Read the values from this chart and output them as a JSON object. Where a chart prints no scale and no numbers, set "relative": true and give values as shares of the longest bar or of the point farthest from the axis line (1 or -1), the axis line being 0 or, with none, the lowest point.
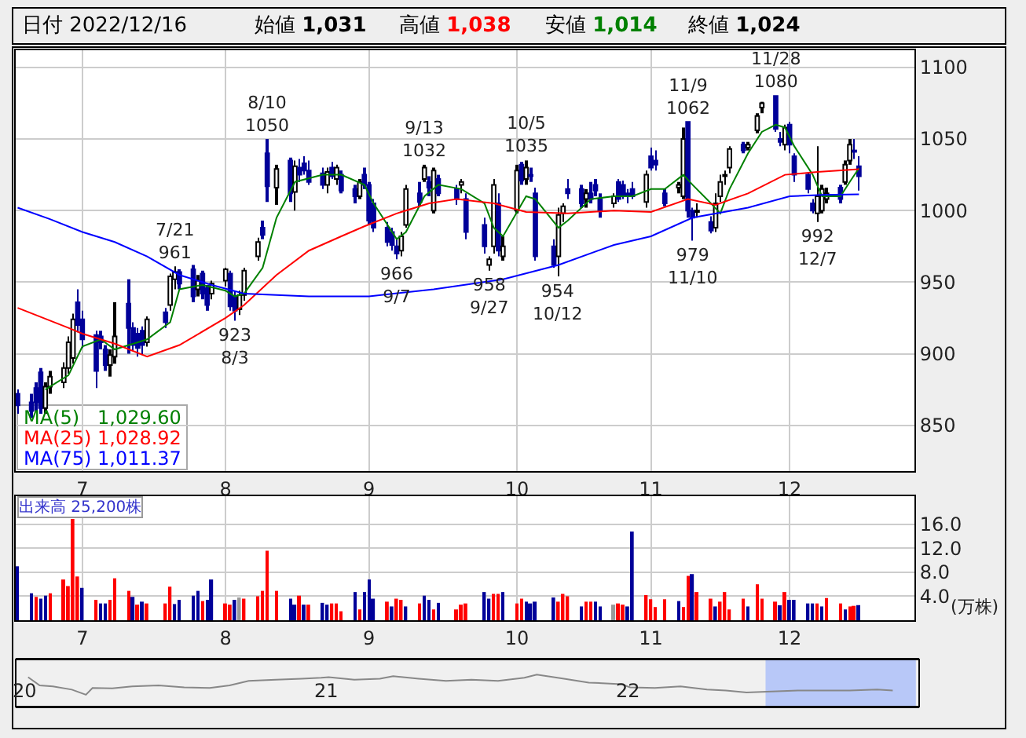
{
  "chart_data": [
    {
      "type": "candlestick",
      "x": [
        "2022-06-17",
        "2022-06-20",
        "2022-06-21",
        "2022-06-22",
        "2022-06-23",
        "2022-06-24",
        "2022-06-27",
        "2022-06-28",
        "2022-06-29",
        "2022-06-30",
        "2022-07-01",
        "2022-07-04",
        "2022-07-05",
        "2022-07-06",
        "2022-07-07",
        "2022-07-08",
        "2022-07-11",
        "2022-07-12",
        "2022-07-13",
        "2022-07-14",
        "2022-07-15",
        "2022-07-19",
        "2022-07-20",
        "2022-07-21",
        "2022-07-22",
        "2022-07-25",
        "2022-07-26",
        "2022-07-27",
        "2022-07-28",
        "2022-07-29",
        "2022-08-01",
        "2022-08-02",
        "2022-08-03",
        "2022-08-04",
        "2022-08-05",
        "2022-08-08",
        "2022-08-09",
        "2022-08-10",
        "2022-08-12",
        "2022-08-15",
        "2022-08-16",
        "2022-08-17",
        "2022-08-18",
        "2022-08-19",
        "2022-08-22",
        "2022-08-23",
        "2022-08-24",
        "2022-08-25",
        "2022-08-26",
        "2022-08-29",
        "2022-08-30",
        "2022-08-31",
        "2022-09-01",
        "2022-09-02",
        "2022-09-05",
        "2022-09-06",
        "2022-09-07",
        "2022-09-08",
        "2022-09-09",
        "2022-09-12",
        "2022-09-13",
        "2022-09-14",
        "2022-09-15",
        "2022-09-16",
        "2022-09-20",
        "2022-09-21",
        "2022-09-22",
        "2022-09-26",
        "2022-09-27",
        "2022-09-28",
        "2022-09-29",
        "2022-09-30",
        "2022-10-03",
        "2022-10-04",
        "2022-10-05",
        "2022-10-06",
        "2022-10-07",
        "2022-10-11",
        "2022-10-12",
        "2022-10-13",
        "2022-10-14",
        "2022-10-17",
        "2022-10-18",
        "2022-10-19",
        "2022-10-20",
        "2022-10-21",
        "2022-10-24",
        "2022-10-25",
        "2022-10-26",
        "2022-10-27",
        "2022-10-28",
        "2022-10-31",
        "2022-11-01",
        "2022-11-02",
        "2022-11-04",
        "2022-11-07",
        "2022-11-08",
        "2022-11-09",
        "2022-11-10",
        "2022-11-11",
        "2022-11-14",
        "2022-11-15",
        "2022-11-16",
        "2022-11-17",
        "2022-11-18",
        "2022-11-21",
        "2022-11-22",
        "2022-11-24",
        "2022-11-25",
        "2022-11-28",
        "2022-11-29",
        "2022-11-30",
        "2022-12-01",
        "2022-12-02",
        "2022-12-05",
        "2022-12-06",
        "2022-12-07",
        "2022-12-08",
        "2022-12-09",
        "2022-12-12",
        "2022-12-13",
        "2022-12-14",
        "2022-12-15",
        "2022-12-16"
      ],
      "ohlc": [
        [
          872,
          875,
          858,
          864
        ],
        [
          866,
          872,
          855,
          860
        ],
        [
          876,
          880,
          860,
          866
        ],
        [
          887,
          890,
          858,
          862
        ],
        [
          862,
          880,
          858,
          877
        ],
        [
          877,
          888,
          872,
          884
        ],
        [
          880,
          894,
          876,
          890
        ],
        [
          890,
          912,
          886,
          908
        ],
        [
          897,
          928,
          893,
          924
        ],
        [
          936,
          945,
          915,
          920
        ],
        [
          924,
          930,
          904,
          910
        ],
        [
          913,
          916,
          876,
          888
        ],
        [
          912,
          916,
          903,
          908
        ],
        [
          903,
          906,
          888,
          892
        ],
        [
          892,
          903,
          884,
          899
        ],
        [
          898,
          936,
          893,
          912
        ],
        [
          935,
          952,
          900,
          918
        ],
        [
          918,
          922,
          902,
          906
        ],
        [
          914,
          918,
          898,
          904
        ],
        [
          916,
          919,
          899,
          906
        ],
        [
          908,
          926,
          905,
          924
        ],
        [
          929,
          932,
          918,
          922
        ],
        [
          934,
          956,
          930,
          954
        ],
        [
          952,
          961,
          945,
          957
        ],
        [
          957,
          959,
          945,
          949
        ],
        [
          959,
          962,
          936,
          940
        ],
        [
          945,
          955,
          940,
          951
        ],
        [
          956,
          958,
          938,
          942
        ],
        [
          946,
          948,
          930,
          934
        ],
        [
          942,
          951,
          938,
          949
        ],
        [
          951,
          960,
          947,
          959
        ],
        [
          956,
          958,
          930,
          933
        ],
        [
          940,
          944,
          923,
          930
        ],
        [
          931,
          944,
          927,
          941
        ],
        [
          941,
          960,
          937,
          958
        ],
        [
          968,
          981,
          965,
          978
        ],
        [
          988,
          993,
          980,
          983
        ],
        [
          1040,
          1050,
          1006,
          1017
        ],
        [
          1016,
          1032,
          1004,
          1029
        ],
        [
          1035,
          1037,
          1006,
          1012
        ],
        [
          1013,
          1035,
          1000,
          1031
        ],
        [
          1030,
          1036,
          1020,
          1025
        ],
        [
          1033,
          1038,
          1025,
          1028
        ],
        [
          1028,
          1035,
          1018,
          1020
        ],
        [
          1026,
          1030,
          1015,
          1018
        ],
        [
          1018,
          1030,
          1012,
          1027
        ],
        [
          1030,
          1034,
          1022,
          1024
        ],
        [
          1022,
          1032,
          1018,
          1030
        ],
        [
          1025,
          1028,
          1012,
          1014
        ],
        [
          1015,
          1018,
          1005,
          1010
        ],
        [
          1010,
          1022,
          1008,
          1020
        ],
        [
          1025,
          1030,
          1015,
          1018
        ],
        [
          1018,
          1020,
          990,
          993
        ],
        [
          1005,
          1008,
          985,
          988
        ],
        [
          988,
          992,
          975,
          978
        ],
        [
          985,
          988,
          972,
          976
        ],
        [
          975,
          980,
          966,
          970
        ],
        [
          972,
          985,
          968,
          982
        ],
        [
          990,
          1018,
          988,
          1015
        ],
        [
          1012,
          1020,
          1003,
          1006
        ],
        [
          1022,
          1032,
          1020,
          1030
        ],
        [
          1020,
          1024,
          1010,
          1016
        ],
        [
          1000,
          1030,
          998,
          1028
        ],
        [
          1022,
          1025,
          1010,
          1012
        ],
        [
          1015,
          1018,
          1004,
          1008
        ],
        [
          1018,
          1022,
          1012,
          1020
        ],
        [
          1008,
          1012,
          980,
          985
        ],
        [
          990,
          995,
          970,
          975
        ],
        [
          962,
          968,
          958,
          966
        ],
        [
          975,
          1022,
          970,
          1018
        ],
        [
          1005,
          1012,
          968,
          972
        ],
        [
          968,
          982,
          965,
          975
        ],
        [
          1000,
          1032,
          998,
          1028
        ],
        [
          1032,
          1034,
          1018,
          1021
        ],
        [
          1022,
          1035,
          1018,
          1030
        ],
        [
          1025,
          1030,
          1020,
          1024
        ],
        [
          1012,
          1016,
          965,
          968
        ],
        [
          975,
          980,
          960,
          962
        ],
        [
          968,
          1002,
          954,
          997
        ],
        [
          998,
          1005,
          992,
          1003
        ],
        [
          1015,
          1022,
          1008,
          1012
        ],
        [
          1015,
          1018,
          1002,
          1005
        ],
        [
          1008,
          1015,
          1002,
          1012
        ],
        [
          1012,
          1020,
          1005,
          1008
        ],
        [
          1018,
          1022,
          1010,
          1014
        ],
        [
          1008,
          1012,
          995,
          1000
        ],
        [
          1005,
          1012,
          1002,
          1010
        ],
        [
          1020,
          1022,
          1006,
          1008
        ],
        [
          1018,
          1021,
          1008,
          1010
        ],
        [
          1012,
          1015,
          1005,
          1011
        ],
        [
          1015,
          1020,
          1008,
          1010
        ],
        [
          1006,
          1028,
          1002,
          1025
        ],
        [
          1038,
          1044,
          1028,
          1030
        ],
        [
          1035,
          1042,
          1028,
          1032
        ],
        [
          1012,
          1015,
          1003,
          1005
        ],
        [
          1016,
          1020,
          1012,
          1018
        ],
        [
          1010,
          1058,
          1008,
          1050
        ],
        [
          1062,
          1062,
          995,
          1000
        ],
        [
          1000,
          1002,
          979,
          995
        ],
        [
          999,
          1005,
          995,
          1000
        ],
        [
          992,
          996,
          984,
          986
        ],
        [
          988,
          1012,
          985,
          1005
        ],
        [
          1010,
          1025,
          1006,
          1020
        ],
        [
          1024,
          1028,
          1018,
          1025
        ],
        [
          1030,
          1045,
          1026,
          1043
        ],
        [
          1046,
          1048,
          1040,
          1042
        ],
        [
          1044,
          1048,
          1042,
          1046
        ],
        [
          1056,
          1068,
          1054,
          1066
        ],
        [
          1072,
          1076,
          1068,
          1075
        ],
        [
          1080,
          1080,
          1055,
          1057
        ],
        [
          1050,
          1055,
          1045,
          1048
        ],
        [
          1046,
          1060,
          1042,
          1058
        ],
        [
          1060,
          1062,
          1040,
          1046
        ],
        [
          1038,
          1040,
          1020,
          1025
        ],
        [
          1025,
          1027,
          1012,
          1015
        ],
        [
          1005,
          1008,
          998,
          1000
        ],
        [
          998,
          1045,
          992,
          1010
        ],
        [
          1000,
          1018,
          998,
          1015
        ],
        [
          1008,
          1016,
          1005,
          1012
        ],
        [
          1016,
          1018,
          1005,
          1008
        ],
        [
          1020,
          1035,
          1018,
          1032
        ],
        [
          1035,
          1050,
          1032,
          1046
        ],
        [
          1042,
          1050,
          1036,
          1041
        ],
        [
          1031,
          1038,
          1014,
          1024
        ]
      ],
      "series": [
        {
          "name": "MA(5)",
          "type": "line",
          "color": "#008000",
          "x": [
            "2022-06-23",
            "2022-06-28",
            "2022-07-01",
            "2022-07-05",
            "2022-07-08",
            "2022-07-13",
            "2022-07-15",
            "2022-07-20",
            "2022-07-22",
            "2022-07-27",
            "2022-08-01",
            "2022-08-03",
            "2022-08-05",
            "2022-08-09",
            "2022-08-12",
            "2022-08-16",
            "2022-08-22",
            "2022-08-26",
            "2022-08-31",
            "2022-09-02",
            "2022-09-07",
            "2022-09-09",
            "2022-09-13",
            "2022-09-16",
            "2022-09-21",
            "2022-09-26",
            "2022-09-28",
            "2022-09-30",
            "2022-10-05",
            "2022-10-07",
            "2022-10-12",
            "2022-10-14",
            "2022-10-19",
            "2022-10-24",
            "2022-10-28",
            "2022-11-01",
            "2022-11-04",
            "2022-11-08",
            "2022-11-10",
            "2022-11-14",
            "2022-11-16",
            "2022-11-18",
            "2022-11-22",
            "2022-11-25",
            "2022-11-28",
            "2022-11-30",
            "2022-12-02",
            "2022-12-06",
            "2022-12-08",
            "2022-12-12",
            "2022-12-14",
            "2022-12-16"
          ],
          "values": [
            875,
            885,
            905,
            910,
            903,
            908,
            910,
            922,
            945,
            948,
            944,
            940,
            942,
            960,
            995,
            1020,
            1025,
            1025,
            1018,
            1005,
            980,
            985,
            1010,
            1018,
            1015,
            1005,
            988,
            982,
            1010,
            1008,
            988,
            993,
            1008,
            1010,
            1010,
            1015,
            1015,
            1025,
            1018,
            1005,
            998,
            1015,
            1040,
            1055,
            1060,
            1058,
            1045,
            1025,
            1010,
            1010,
            1020,
            1029.6
          ]
        },
        {
          "name": "MA(25)",
          "type": "line",
          "color": "#ff0000",
          "x": [
            "2022-06-17",
            "2022-06-28",
            "2022-07-01",
            "2022-07-08",
            "2022-07-15",
            "2022-07-22",
            "2022-08-01",
            "2022-08-05",
            "2022-08-12",
            "2022-08-19",
            "2022-08-26",
            "2022-08-31",
            "2022-09-07",
            "2022-09-14",
            "2022-09-20",
            "2022-09-28",
            "2022-10-05",
            "2022-10-14",
            "2022-10-24",
            "2022-11-01",
            "2022-11-09",
            "2022-11-15",
            "2022-11-22",
            "2022-11-30",
            "2022-12-07",
            "2022-12-16"
          ],
          "values": [
            932,
            918,
            914,
            907,
            898,
            906,
            925,
            934,
            955,
            972,
            982,
            989,
            998,
            1005,
            1008,
            1005,
            999,
            998,
            1000,
            999,
            1008,
            1004,
            1012,
            1025,
            1027,
            1028.92
          ]
        },
        {
          "name": "MA(75)",
          "type": "line",
          "color": "#0000ff",
          "x": [
            "2022-06-17",
            "2022-06-24",
            "2022-07-01",
            "2022-07-08",
            "2022-07-15",
            "2022-07-22",
            "2022-07-29",
            "2022-08-05",
            "2022-08-19",
            "2022-09-01",
            "2022-09-15",
            "2022-09-30",
            "2022-10-12",
            "2022-10-24",
            "2022-11-01",
            "2022-11-10",
            "2022-11-22",
            "2022-12-01",
            "2022-12-08",
            "2022-12-16"
          ],
          "values": [
            1002,
            994,
            985,
            978,
            968,
            955,
            948,
            942,
            940,
            940,
            945,
            952,
            962,
            976,
            982,
            995,
            1002,
            1010,
            1011,
            1011.37
          ]
        }
      ],
      "xlim": [
        "2022-06-16T14:00",
        "2022-12-28"
      ],
      "xticks": [
        {
          "value": "2022-07-01",
          "label": "7"
        },
        {
          "value": "2022-08-01",
          "label": "8"
        },
        {
          "value": "2022-09-01",
          "label": "9"
        },
        {
          "value": "2022-10-03",
          "label": "10"
        },
        {
          "value": "2022-11-01",
          "label": "11"
        },
        {
          "value": "2022-12-01",
          "label": "12"
        }
      ],
      "ylim": [
        818,
        1112
      ],
      "yticks": [
        850,
        900,
        950,
        1000,
        1050,
        1100
      ],
      "grid": true,
      "legend": "bottom left",
      "annotations": [
        "日付 2022/12/16",
        "始値 1,031",
        "高値 1,038",
        "安値 1,014",
        "終値 1,024",
        "1,029.60",
        "1,028.92",
        "1,011.37",
        {
          "text": "7/21\n961",
          "x": "2022-07-21",
          "y": 961
        },
        {
          "text": "923\n8/3",
          "x": "2022-08-03",
          "y": 923
        },
        {
          "text": "8/10\n1050",
          "x": "2022-08-10",
          "y": 1050
        },
        {
          "text": "966\n9/7",
          "x": "2022-09-07",
          "y": 966
        },
        {
          "text": "9/13\n1032",
          "x": "2022-09-13",
          "y": 1032
        },
        {
          "text": "958\n9/27",
          "x": "2022-09-27",
          "y": 958
        },
        {
          "text": "10/5\n1035",
          "x": "2022-10-05",
          "y": 1035
        },
        {
          "text": "954\n10/12",
          "x": "2022-10-12",
          "y": 954
        },
        {
          "text": "11/9\n1062",
          "x": "2022-11-09",
          "y": 1062
        },
        {
          "text": "979\n11/10",
          "x": "2022-11-10",
          "y": 979
        },
        {
          "text": "11/28\n1080",
          "x": "2022-11-28",
          "y": 1080
        },
        {
          "text": "992\n12/7",
          "x": "2022-12-07",
          "y": 992
        }
      ]
    },
    {
      "type": "bar",
      "title": "出来高 25,200株",
      "ylabel": "(万株)",
      "x": [
        "2022-06-17",
        "2022-06-20",
        "2022-06-21",
        "2022-06-22",
        "2022-06-23",
        "2022-06-24",
        "2022-06-27",
        "2022-06-28",
        "2022-06-29",
        "2022-06-30",
        "2022-07-01",
        "2022-07-04",
        "2022-07-05",
        "2022-07-06",
        "2022-07-07",
        "2022-07-08",
        "2022-07-11",
        "2022-07-12",
        "2022-07-13",
        "2022-07-14",
        "2022-07-15",
        "2022-07-19",
        "2022-07-20",
        "2022-07-21",
        "2022-07-22",
        "2022-07-25",
        "2022-07-26",
        "2022-07-27",
        "2022-07-28",
        "2022-07-29",
        "2022-08-01",
        "2022-08-02",
        "2022-08-03",
        "2022-08-04",
        "2022-08-05",
        "2022-08-08",
        "2022-08-09",
        "2022-08-10",
        "2022-08-12",
        "2022-08-15",
        "2022-08-16",
        "2022-08-17",
        "2022-08-18",
        "2022-08-19",
        "2022-08-22",
        "2022-08-23",
        "2022-08-24",
        "2022-08-25",
        "2022-08-26",
        "2022-08-29",
        "2022-08-30",
        "2022-08-31",
        "2022-09-01",
        "2022-09-02",
        "2022-09-05",
        "2022-09-06",
        "2022-09-07",
        "2022-09-08",
        "2022-09-09",
        "2022-09-12",
        "2022-09-13",
        "2022-09-14",
        "2022-09-15",
        "2022-09-16",
        "2022-09-20",
        "2022-09-21",
        "2022-09-22",
        "2022-09-26",
        "2022-09-27",
        "2022-09-28",
        "2022-09-29",
        "2022-09-30",
        "2022-10-03",
        "2022-10-04",
        "2022-10-05",
        "2022-10-06",
        "2022-10-07",
        "2022-10-11",
        "2022-10-12",
        "2022-10-13",
        "2022-10-14",
        "2022-10-17",
        "2022-10-18",
        "2022-10-19",
        "2022-10-20",
        "2022-10-21",
        "2022-10-24",
        "2022-10-25",
        "2022-10-26",
        "2022-10-27",
        "2022-10-28",
        "2022-10-31",
        "2022-11-01",
        "2022-11-02",
        "2022-11-04",
        "2022-11-07",
        "2022-11-08",
        "2022-11-09",
        "2022-11-10",
        "2022-11-11",
        "2022-11-14",
        "2022-11-15",
        "2022-11-16",
        "2022-11-17",
        "2022-11-18",
        "2022-11-21",
        "2022-11-22",
        "2022-11-24",
        "2022-11-25",
        "2022-11-28",
        "2022-11-29",
        "2022-11-30",
        "2022-12-01",
        "2022-12-02",
        "2022-12-05",
        "2022-12-06",
        "2022-12-07",
        "2022-12-08",
        "2022-12-09",
        "2022-12-12",
        "2022-12-13",
        "2022-12-14",
        "2022-12-15",
        "2022-12-16"
      ],
      "values": [
        9.0,
        4.5,
        3.9,
        3.6,
        4.1,
        4.5,
        6.8,
        5.7,
        16.9,
        7.3,
        5.4,
        3.4,
        2.8,
        2.8,
        3.4,
        7.0,
        4.9,
        3.9,
        2.6,
        3.1,
        2.8,
        2.8,
        5.6,
        2.7,
        3.4,
        4.1,
        4.9,
        3.2,
        3.4,
        6.8,
        2.8,
        2.6,
        3.4,
        3.8,
        3.6,
        4.0,
        4.9,
        11.6,
        4.9,
        3.6,
        2.6,
        4.1,
        2.6,
        2.6,
        2.9,
        2.6,
        2.8,
        2.8,
        1.5,
        4.7,
        1.8,
        4.7,
        6.8,
        3.6,
        3.1,
        2.3,
        3.6,
        3.4,
        2.3,
        2.8,
        4.1,
        3.4,
        1.8,
        2.9,
        1.8,
        2.6,
        2.8,
        4.7,
        3.6,
        4.4,
        4.4,
        4.7,
        2.8,
        3.6,
        3.1,
        2.8,
        3.1,
        3.8,
        3.1,
        4.4,
        4.0,
        2.3,
        3.1,
        3.1,
        3.1,
        2.3,
        2.6,
        2.8,
        2.6,
        2.3,
        14.8,
        4.2,
        3.5,
        2.2,
        3.5,
        3.2,
        2.2,
        7.4,
        7.7,
        4.7,
        3.6,
        2.3,
        3.1,
        4.7,
        1.8,
        3.6,
        2.3,
        6.0,
        3.6,
        3.1,
        2.5,
        4.7,
        3.4,
        3.4,
        2.8,
        2.8,
        2.8,
        2.3,
        3.7,
        2.8,
        1.8,
        2.3,
        2.4,
        2.52
      ],
      "colors": [
        "#000099",
        "#000099",
        "#ff0000",
        "#000099",
        "#000099",
        "#ff0000",
        "#ff0000",
        "#ff0000",
        "#ff0000",
        "#ff0000",
        "#000099",
        "#ff0000",
        "#000099",
        "#000099",
        "#ff0000",
        "#ff0000",
        "#ff0000",
        "#000099",
        "#ff0000",
        "#000099",
        "#ff0000",
        "#ff0000",
        "#ff0000",
        "#000099",
        "#000099",
        "#000099",
        "#000099",
        "#ff0000",
        "#000099",
        "#000099",
        "#ff0000",
        "#ff0000",
        "#000099",
        "#999999",
        "#ff0000",
        "#ff0000",
        "#ff0000",
        "#ff0000",
        "#ff0000",
        "#000099",
        "#000099",
        "#ff0000",
        "#000099",
        "#ff0000",
        "#000099",
        "#000099",
        "#ff0000",
        "#ff0000",
        "#ff0000",
        "#000099",
        "#ff0000",
        "#000099",
        "#000099",
        "#000099",
        "#ff0000",
        "#000099",
        "#ff0000",
        "#ff0000",
        "#000099",
        "#ff0000",
        "#000099",
        "#000099",
        "#ff0000",
        "#000099",
        "#ff0000",
        "#ff0000",
        "#ff0000",
        "#000099",
        "#000099",
        "#ff0000",
        "#ff0000",
        "#000099",
        "#ff0000",
        "#ff0000",
        "#000099",
        "#000099",
        "#000099",
        "#000099",
        "#ff0000",
        "#ff0000",
        "#ff0000",
        "#000099",
        "#ff0000",
        "#ff0000",
        "#000099",
        "#000099",
        "#999999",
        "#ff0000",
        "#ff0000",
        "#000099",
        "#000099",
        "#ff0000",
        "#ff0000",
        "#ff0000",
        "#ff0000",
        "#000099",
        "#ff0000",
        "#ff0000",
        "#000099",
        "#ff0000",
        "#ff0000",
        "#000099",
        "#ff0000",
        "#ff0000",
        "#ff0000",
        "#ff0000",
        "#000099",
        "#ff0000",
        "#ff0000",
        "#ff0000",
        "#000099",
        "#ff0000",
        "#000099",
        "#000099",
        "#000099",
        "#000099",
        "#ff0000",
        "#000099",
        "#ff0000",
        "#ff0000",
        "#000099",
        "#ff0000",
        "#ff0000",
        "#000099"
      ],
      "xlim": [
        "2022-06-16T14:00",
        "2022-12-28"
      ],
      "xticks": [
        {
          "value": "2022-07-01",
          "label": "7"
        },
        {
          "value": "2022-08-01",
          "label": "8"
        },
        {
          "value": "2022-09-01",
          "label": "9"
        },
        {
          "value": "2022-10-03",
          "label": "10"
        },
        {
          "value": "2022-11-01",
          "label": "11"
        },
        {
          "value": "2022-12-01",
          "label": "12"
        }
      ],
      "ylim": [
        0,
        20.7
      ],
      "yticks": [
        {
          "value": 4,
          "label": "4.0"
        },
        {
          "value": 8,
          "label": "8.0"
        },
        {
          "value": 12,
          "label": "12.0"
        },
        {
          "value": 16,
          "label": "16.0"
        }
      ],
      "grid": true
    },
    {
      "type": "line",
      "relative": true,
      "tick_labels": "x",
      "x": [
        "2020-01-06",
        "2020-01-20",
        "2020-02-05",
        "2020-02-28",
        "2020-03-16",
        "2020-03-24",
        "2020-04-17",
        "2020-05-11",
        "2020-06-12",
        "2020-07-13",
        "2020-08-13",
        "2020-09-06",
        "2020-09-29",
        "2020-11-01",
        "2020-12-02",
        "2020-12-26",
        "2021-01-04",
        "2021-02-04",
        "2021-03-07",
        "2021-03-23",
        "2021-04-23",
        "2021-05-26",
        "2021-06-26",
        "2021-07-28",
        "2021-08-29",
        "2021-09-13",
        "2021-10-16",
        "2021-11-15",
        "2021-12-24",
        "2022-01-04",
        "2022-02-03",
        "2022-03-06",
        "2022-04-07",
        "2022-04-30",
        "2022-05-25",
        "2022-06-25",
        "2022-07-26",
        "2022-08-28",
        "2022-09-27",
        "2022-10-30",
        "2022-11-18"
      ],
      "series": [
        {
          "color": "#888888",
          "values": [
            0.92,
            0.66,
            0.63,
            0.53,
            0.37,
            0.58,
            0.57,
            0.63,
            0.66,
            0.6,
            0.58,
            0.66,
            0.8,
            0.84,
            0.87,
            0.9,
            0.92,
            0.84,
            0.87,
            0.95,
            0.87,
            0.8,
            0.84,
            0.8,
            0.9,
            1,
            0.87,
            0.75,
            0.7,
            0.6,
            0.58,
            0.63,
            0.53,
            0.5,
            0.44,
            0.47,
            0.5,
            0.5,
            0.5,
            0.53,
            0.5
          ]
        }
      ],
      "xlim": [
        "2019-12-22",
        "2022-12-20"
      ],
      "xticks": [
        {
          "value": "2020-01-01",
          "label": "20"
        },
        {
          "value": "2021-01-01",
          "label": "21"
        },
        {
          "value": "2022-01-01",
          "label": "22"
        }
      ],
      "bands": [
        {
          "axis": "x",
          "from": "2022-06-17",
          "to": "2022-12-16",
          "color": "#b8c8f8"
        }
      ]
    }
  ]
}
